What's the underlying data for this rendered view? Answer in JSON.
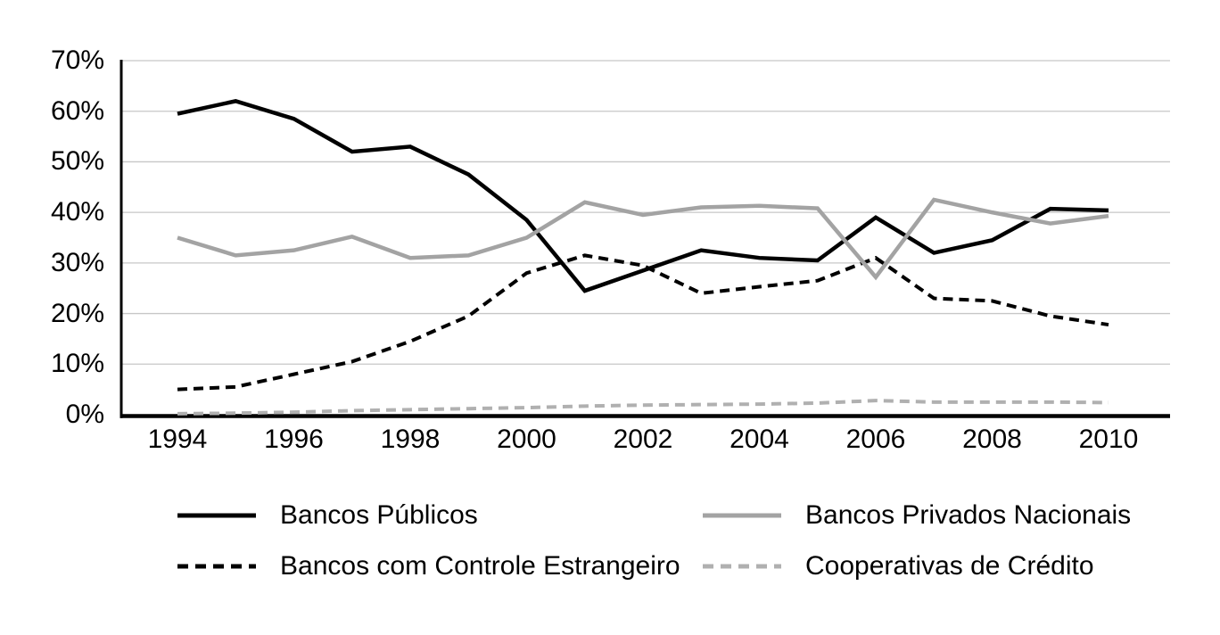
{
  "chart_data": {
    "type": "line",
    "title": "",
    "x": [
      1994,
      1995,
      1996,
      1997,
      1998,
      1999,
      2000,
      2001,
      2002,
      2003,
      2004,
      2005,
      2006,
      2007,
      2008,
      2009,
      2010
    ],
    "x_tick_labels": [
      "1994",
      "1996",
      "1998",
      "2000",
      "2002",
      "2004",
      "2006",
      "2008",
      "2010"
    ],
    "y_ticks": [
      0,
      10,
      20,
      30,
      40,
      50,
      60,
      70
    ],
    "y_tick_labels": [
      "0%",
      "10%",
      "20%",
      "30%",
      "40%",
      "50%",
      "60%",
      "70%"
    ],
    "ylim": [
      0,
      70
    ],
    "grid": "horizontal",
    "legend_position": "bottom",
    "gridline_color": "#c7c7c7",
    "axis_color": "#000000",
    "series": [
      {
        "name": "Bancos Públicos",
        "style": "solid",
        "color": "#000000",
        "values": [
          59.5,
          62,
          58.5,
          52,
          53,
          47.5,
          38.5,
          24.5,
          28.5,
          32.5,
          31,
          30.5,
          39,
          32,
          34.5,
          40.7,
          40.4
        ]
      },
      {
        "name": "Bancos Privados Nacionais",
        "style": "solid",
        "color": "#a3a3a3",
        "values": [
          35,
          31.5,
          32.5,
          35.2,
          31,
          31.5,
          35,
          42,
          39.5,
          41,
          41.3,
          40.8,
          27.2,
          42.5,
          40,
          37.8,
          39.3
        ]
      },
      {
        "name": "Bancos com Controle Estrangeiro",
        "style": "dashed",
        "color": "#000000",
        "values": [
          5,
          5.5,
          8,
          10.5,
          14.5,
          19.5,
          28,
          31.5,
          29.5,
          24,
          25.3,
          26.5,
          31,
          23,
          22.5,
          19.5,
          17.8
        ]
      },
      {
        "name": "Cooperativas de Crédito",
        "style": "dashed",
        "color": "#b0b0b0",
        "values": [
          0.2,
          0.3,
          0.5,
          0.8,
          1,
          1.2,
          1.4,
          1.7,
          1.9,
          2,
          2.1,
          2.3,
          2.8,
          2.5,
          2.5,
          2.5,
          2.4
        ]
      }
    ]
  }
}
